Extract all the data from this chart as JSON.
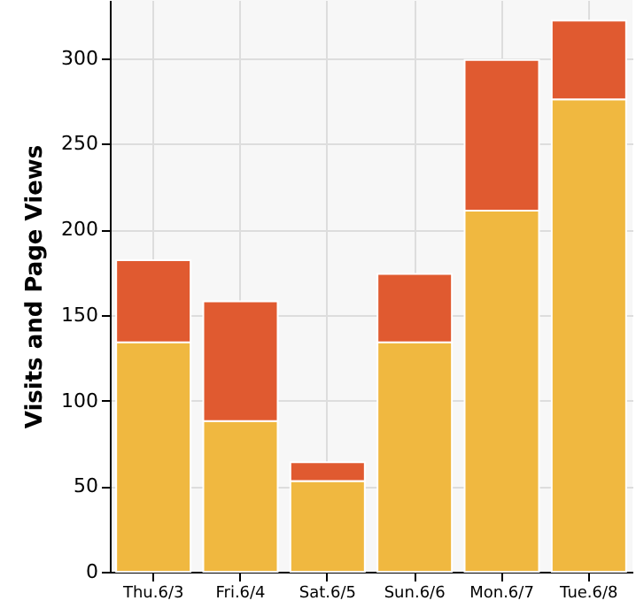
{
  "chart_data": {
    "type": "bar",
    "ylabel": "Visits and Page Views",
    "categories": [
      "Thu.6/3",
      "Fri.6/4",
      "Sat.6/5",
      "Sun.6/6",
      "Mon.6/7",
      "Tue.6/8"
    ],
    "stacked": true,
    "series": [
      {
        "color": "#f0b840",
        "values": [
          134,
          88,
          53,
          134,
          211,
          276
        ]
      },
      {
        "color": "#e05a30",
        "values": [
          48,
          70,
          11,
          40,
          88,
          46
        ]
      }
    ],
    "ylim": [
      0,
      334
    ],
    "yticks": [
      0,
      50,
      100,
      150,
      200,
      250,
      300
    ],
    "grid": true
  }
}
